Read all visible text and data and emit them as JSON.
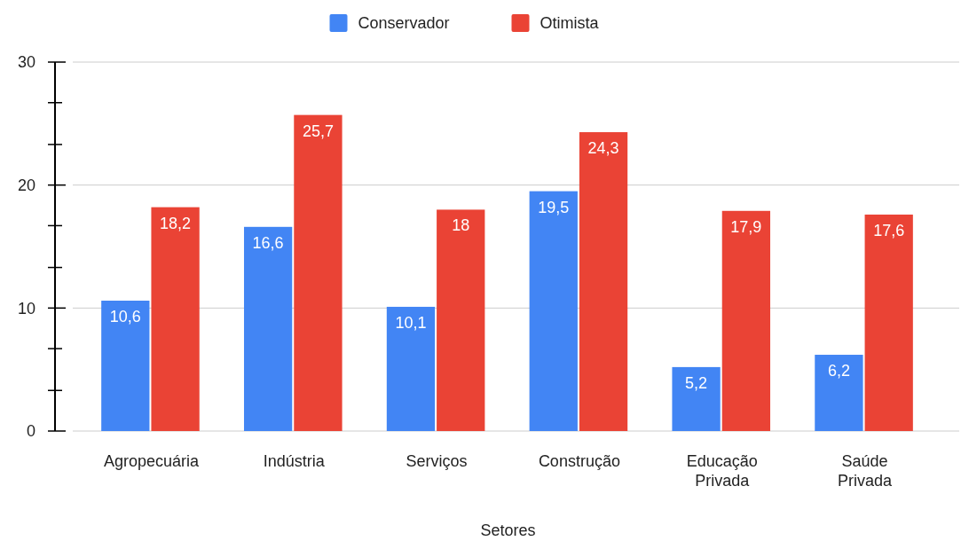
{
  "chart_data": {
    "type": "bar",
    "xlabel": "Setores",
    "categories": [
      "Agropecuária",
      "Indústria",
      "Serviços",
      "Construção",
      "Educação Privada",
      "Saúde Privada"
    ],
    "series": [
      {
        "name": "Conservador",
        "color": "#4285f4",
        "values": [
          10.6,
          16.6,
          10.1,
          19.5,
          5.2,
          6.2
        ],
        "value_labels": [
          "10,6",
          "16,6",
          "10,1",
          "19,5",
          "5,2",
          "6,2"
        ]
      },
      {
        "name": "Otimista",
        "color": "#ea4335",
        "values": [
          18.2,
          25.7,
          18,
          24.3,
          17.9,
          17.6
        ],
        "value_labels": [
          "18,2",
          "25,7",
          "18",
          "24,3",
          "17,9",
          "17,6"
        ]
      }
    ],
    "ylim": [
      0,
      30
    ],
    "yticks": [
      0,
      {
        "value": 3.3,
        "label": null
      },
      {
        "value": 6.7,
        "label": null
      },
      10,
      {
        "value": 13.3,
        "label": null
      },
      {
        "value": 16.7,
        "label": null
      },
      20,
      {
        "value": 23.3,
        "label": null
      },
      {
        "value": 26.7,
        "label": null
      },
      30
    ],
    "grid": "y",
    "legend": "top"
  }
}
